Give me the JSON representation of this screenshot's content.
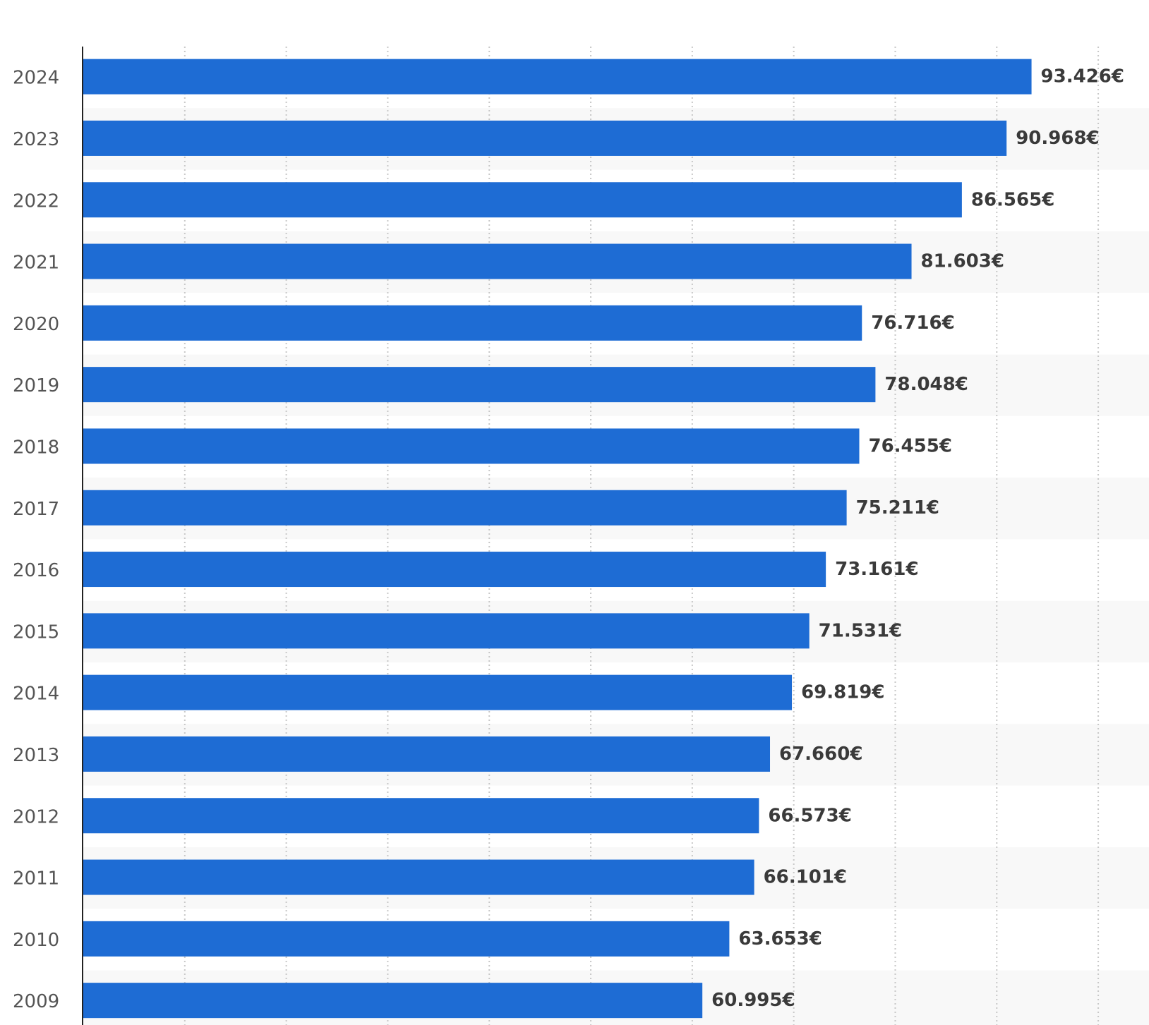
{
  "chart_data": {
    "type": "bar",
    "orientation": "horizontal",
    "categories": [
      "2024",
      "2023",
      "2022",
      "2021",
      "2020",
      "2019",
      "2018",
      "2017",
      "2016",
      "2015",
      "2014",
      "2013",
      "2012",
      "2011",
      "2010",
      "2009"
    ],
    "values": [
      93.426,
      90.968,
      86.565,
      81.603,
      76.716,
      78.048,
      76.455,
      75.211,
      73.161,
      71.531,
      69.819,
      67.66,
      66.573,
      66.101,
      63.653,
      60.995
    ],
    "value_labels": [
      "93.426€",
      "90.968€",
      "86.565€",
      "81.603€",
      "76.716€",
      "78.048€",
      "76.455€",
      "75.211€",
      "73.161€",
      "71.531€",
      "69.819€",
      "67.660€",
      "66.573€",
      "66.101€",
      "63.653€",
      "60.995€"
    ],
    "xlim": [
      0,
      105
    ],
    "x_gridline_step": 10,
    "grid": "vertical dotted",
    "alternating_row_bands": true,
    "title": "",
    "xlabel": "",
    "ylabel": "",
    "legend": "none"
  },
  "colors": {
    "bar": "#1e6cd4",
    "band": "#f8f8f8",
    "grid": "#c8c8c8",
    "axis": "#222222",
    "category_text": "#555555",
    "value_text": "#3a3a3a"
  }
}
